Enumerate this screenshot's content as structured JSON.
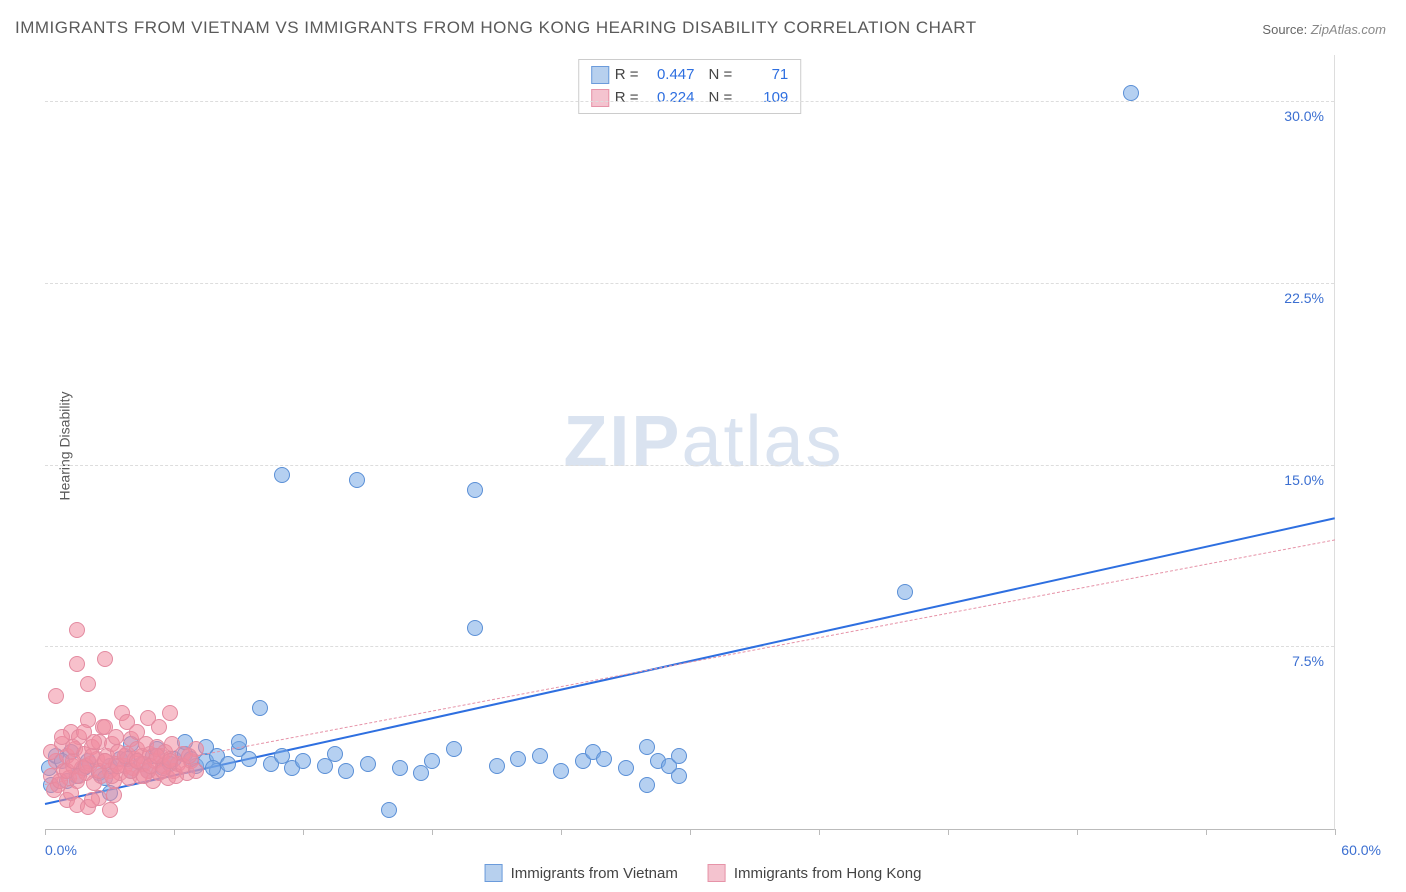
{
  "title": "IMMIGRANTS FROM VIETNAM VS IMMIGRANTS FROM HONG KONG HEARING DISABILITY CORRELATION CHART",
  "source_label": "Source:",
  "source_value": "ZipAtlas.com",
  "watermark_zip": "ZIP",
  "watermark_atlas": "atlas",
  "ylabel": "Hearing Disability",
  "xlim": [
    0,
    60
  ],
  "ylim": [
    0,
    32
  ],
  "x_tick_label_min": "0.0%",
  "x_tick_label_max": "60.0%",
  "y_ticks": [
    {
      "v": 7.5,
      "label": "7.5%"
    },
    {
      "v": 15.0,
      "label": "15.0%"
    },
    {
      "v": 22.5,
      "label": "22.5%"
    },
    {
      "v": 30.0,
      "label": "30.0%"
    }
  ],
  "x_minor_ticks": [
    0,
    6,
    12,
    18,
    24,
    30,
    36,
    42,
    48,
    54,
    60
  ],
  "series": [
    {
      "name": "Immigrants from Vietnam",
      "color_fill": "rgba(120,170,230,0.55)",
      "color_stroke": "#5a8fd6",
      "swatch_fill": "#b7d0ee",
      "swatch_border": "#6b9bdb",
      "r_value": "0.447",
      "n_value": "71",
      "marker_radius": 8,
      "trend": {
        "x1": 0,
        "y1": 1.0,
        "x2": 60,
        "y2": 12.8,
        "color": "#2e6fe0",
        "width": 2.5,
        "dash": false
      },
      "points": [
        [
          0.2,
          2.5
        ],
        [
          0.5,
          3.0
        ],
        [
          1.0,
          2.0
        ],
        [
          1.2,
          3.2
        ],
        [
          1.5,
          2.2
        ],
        [
          2.0,
          2.8
        ],
        [
          2.5,
          2.3
        ],
        [
          3.0,
          2.6
        ],
        [
          3.5,
          2.9
        ],
        [
          4.0,
          2.4
        ],
        [
          4.5,
          2.7
        ],
        [
          5.0,
          3.0
        ],
        [
          5.2,
          3.3
        ],
        [
          5.5,
          2.5
        ],
        [
          6.0,
          2.9
        ],
        [
          6.5,
          3.1
        ],
        [
          7.0,
          2.6
        ],
        [
          7.5,
          2.8
        ],
        [
          8.0,
          3.0
        ],
        [
          8.0,
          2.4
        ],
        [
          8.5,
          2.7
        ],
        [
          9.0,
          3.3
        ],
        [
          9.5,
          2.9
        ],
        [
          10.0,
          5.0
        ],
        [
          10.5,
          2.7
        ],
        [
          11.0,
          3.0
        ],
        [
          11.5,
          2.5
        ],
        [
          12.0,
          2.8
        ],
        [
          13.0,
          2.6
        ],
        [
          13.5,
          3.1
        ],
        [
          14.0,
          2.4
        ],
        [
          15.0,
          2.7
        ],
        [
          16.0,
          0.8
        ],
        [
          16.5,
          2.5
        ],
        [
          17.5,
          2.3
        ],
        [
          18.0,
          2.8
        ],
        [
          19.0,
          3.3
        ],
        [
          20.0,
          8.3
        ],
        [
          21.0,
          2.6
        ],
        [
          22.0,
          2.9
        ],
        [
          23.0,
          3.0
        ],
        [
          24.0,
          2.4
        ],
        [
          25.0,
          2.8
        ],
        [
          25.5,
          3.2
        ],
        [
          26.0,
          2.9
        ],
        [
          27.0,
          2.5
        ],
        [
          28.0,
          3.4
        ],
        [
          28.0,
          1.8
        ],
        [
          28.5,
          2.8
        ],
        [
          29.0,
          2.6
        ],
        [
          29.5,
          3.0
        ],
        [
          29.5,
          2.2
        ],
        [
          11.0,
          14.6
        ],
        [
          14.5,
          14.4
        ],
        [
          20.0,
          14.0
        ],
        [
          40.0,
          9.8
        ],
        [
          50.5,
          30.4
        ],
        [
          3.0,
          1.5
        ],
        [
          4.0,
          3.5
        ],
        [
          6.5,
          3.6
        ],
        [
          7.5,
          3.4
        ],
        [
          9.0,
          3.6
        ],
        [
          0.3,
          1.8
        ],
        [
          0.8,
          2.8
        ],
        [
          1.8,
          2.5
        ],
        [
          2.8,
          2.1
        ],
        [
          3.8,
          2.9
        ],
        [
          4.8,
          2.4
        ],
        [
          5.8,
          2.7
        ],
        [
          6.8,
          2.9
        ],
        [
          7.8,
          2.5
        ]
      ]
    },
    {
      "name": "Immigrants from Hong Kong",
      "color_fill": "rgba(240,140,160,0.55)",
      "color_stroke": "#e38aa0",
      "swatch_fill": "#f4c3cf",
      "swatch_border": "#e693a8",
      "r_value": "0.224",
      "n_value": "109",
      "marker_radius": 8,
      "trend": {
        "x1": 0,
        "y1": 1.8,
        "x2": 60,
        "y2": 11.9,
        "color": "#e693a8",
        "width": 1,
        "dash": true
      },
      "points": [
        [
          0.3,
          2.2
        ],
        [
          0.5,
          2.8
        ],
        [
          0.6,
          1.8
        ],
        [
          0.8,
          3.5
        ],
        [
          0.9,
          2.4
        ],
        [
          1.0,
          3.0
        ],
        [
          1.1,
          2.1
        ],
        [
          1.2,
          4.0
        ],
        [
          1.3,
          2.6
        ],
        [
          1.4,
          3.3
        ],
        [
          1.5,
          2.0
        ],
        [
          1.6,
          3.8
        ],
        [
          1.7,
          2.5
        ],
        [
          1.8,
          3.1
        ],
        [
          1.9,
          2.3
        ],
        [
          2.0,
          4.5
        ],
        [
          2.1,
          2.7
        ],
        [
          2.2,
          3.4
        ],
        [
          2.3,
          1.9
        ],
        [
          2.4,
          2.9
        ],
        [
          2.5,
          3.6
        ],
        [
          2.6,
          2.2
        ],
        [
          2.7,
          4.2
        ],
        [
          2.8,
          2.8
        ],
        [
          2.9,
          3.0
        ],
        [
          3.0,
          2.4
        ],
        [
          3.1,
          3.5
        ],
        [
          3.2,
          2.0
        ],
        [
          3.3,
          2.7
        ],
        [
          3.4,
          3.2
        ],
        [
          3.5,
          2.3
        ],
        [
          3.6,
          4.8
        ],
        [
          3.7,
          2.6
        ],
        [
          3.8,
          3.1
        ],
        [
          3.9,
          2.1
        ],
        [
          4.0,
          3.7
        ],
        [
          4.1,
          2.5
        ],
        [
          4.2,
          2.9
        ],
        [
          4.3,
          3.3
        ],
        [
          4.4,
          2.2
        ],
        [
          4.5,
          3.0
        ],
        [
          4.6,
          2.7
        ],
        [
          4.7,
          3.5
        ],
        [
          4.8,
          2.4
        ],
        [
          4.9,
          3.1
        ],
        [
          5.0,
          2.0
        ],
        [
          5.1,
          2.8
        ],
        [
          5.2,
          3.4
        ],
        [
          5.3,
          2.3
        ],
        [
          5.4,
          3.0
        ],
        [
          5.5,
          2.6
        ],
        [
          5.6,
          3.2
        ],
        [
          5.7,
          2.1
        ],
        [
          5.8,
          2.9
        ],
        [
          5.9,
          3.5
        ],
        [
          6.0,
          2.4
        ],
        [
          6.2,
          2.7
        ],
        [
          6.4,
          3.1
        ],
        [
          6.6,
          2.3
        ],
        [
          6.8,
          2.8
        ],
        [
          7.0,
          3.3
        ],
        [
          1.0,
          1.2
        ],
        [
          1.5,
          1.0
        ],
        [
          2.0,
          0.9
        ],
        [
          2.5,
          1.3
        ],
        [
          3.0,
          0.8
        ],
        [
          1.2,
          1.5
        ],
        [
          2.2,
          1.2
        ],
        [
          3.2,
          1.4
        ],
        [
          0.5,
          5.5
        ],
        [
          1.5,
          6.8
        ],
        [
          2.0,
          6.0
        ],
        [
          2.8,
          7.0
        ],
        [
          0.4,
          1.6
        ],
        [
          0.7,
          2.0
        ],
        [
          1.0,
          2.4
        ],
        [
          1.3,
          2.8
        ],
        [
          1.6,
          2.2
        ],
        [
          1.9,
          2.6
        ],
        [
          2.2,
          3.0
        ],
        [
          2.5,
          2.4
        ],
        [
          2.8,
          2.8
        ],
        [
          3.1,
          2.2
        ],
        [
          3.4,
          2.6
        ],
        [
          3.7,
          3.0
        ],
        [
          4.0,
          2.4
        ],
        [
          4.3,
          2.8
        ],
        [
          4.6,
          2.2
        ],
        [
          4.9,
          2.6
        ],
        [
          5.2,
          3.0
        ],
        [
          5.5,
          2.4
        ],
        [
          5.8,
          2.8
        ],
        [
          6.1,
          2.2
        ],
        [
          6.4,
          2.6
        ],
        [
          6.7,
          3.0
        ],
        [
          7.0,
          2.4
        ],
        [
          0.3,
          3.2
        ],
        [
          0.8,
          3.8
        ],
        [
          1.3,
          3.4
        ],
        [
          1.8,
          4.0
        ],
        [
          2.3,
          3.6
        ],
        [
          2.8,
          4.2
        ],
        [
          3.3,
          3.8
        ],
        [
          3.8,
          4.4
        ],
        [
          4.3,
          4.0
        ],
        [
          4.8,
          4.6
        ],
        [
          5.3,
          4.2
        ],
        [
          5.8,
          4.8
        ],
        [
          1.5,
          8.2
        ]
      ]
    }
  ]
}
